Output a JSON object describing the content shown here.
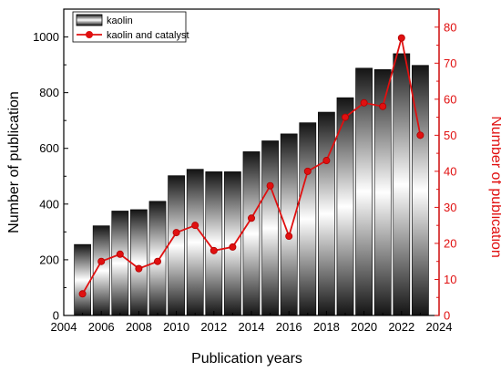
{
  "chart_data": {
    "type": "bar+line",
    "xlabel": "Publication years",
    "ylabel_left": "Number of publication",
    "ylabel_right": "Number of publication",
    "xlim": [
      2004,
      2024
    ],
    "x_ticks": [
      2004,
      2006,
      2008,
      2010,
      2012,
      2014,
      2016,
      2018,
      2020,
      2022,
      2024
    ],
    "ylim_left": [
      0,
      1100
    ],
    "y_ticks_left": [
      0,
      200,
      400,
      600,
      800,
      1000
    ],
    "ylim_right": [
      0,
      85
    ],
    "y_ticks_right": [
      0,
      10,
      20,
      30,
      40,
      50,
      60,
      70,
      80
    ],
    "years": [
      2005,
      2006,
      2007,
      2008,
      2009,
      2010,
      2011,
      2012,
      2013,
      2014,
      2015,
      2016,
      2017,
      2018,
      2019,
      2020,
      2021,
      2022,
      2023
    ],
    "series": [
      {
        "name": "kaolin",
        "kind": "bar",
        "axis": "left",
        "values": [
          255,
          322,
          375,
          380,
          410,
          502,
          525,
          516,
          516,
          588,
          627,
          652,
          692,
          730,
          782,
          888,
          883,
          940,
          898
        ]
      },
      {
        "name": "kaolin and catalyst",
        "kind": "line",
        "axis": "right",
        "color": "#e01010",
        "values": [
          6,
          15,
          17,
          13,
          15,
          23,
          25,
          18,
          19,
          27,
          36,
          22,
          40,
          43,
          55,
          59,
          58,
          77,
          50
        ]
      }
    ],
    "legend_position": "top-left",
    "grid": false
  }
}
